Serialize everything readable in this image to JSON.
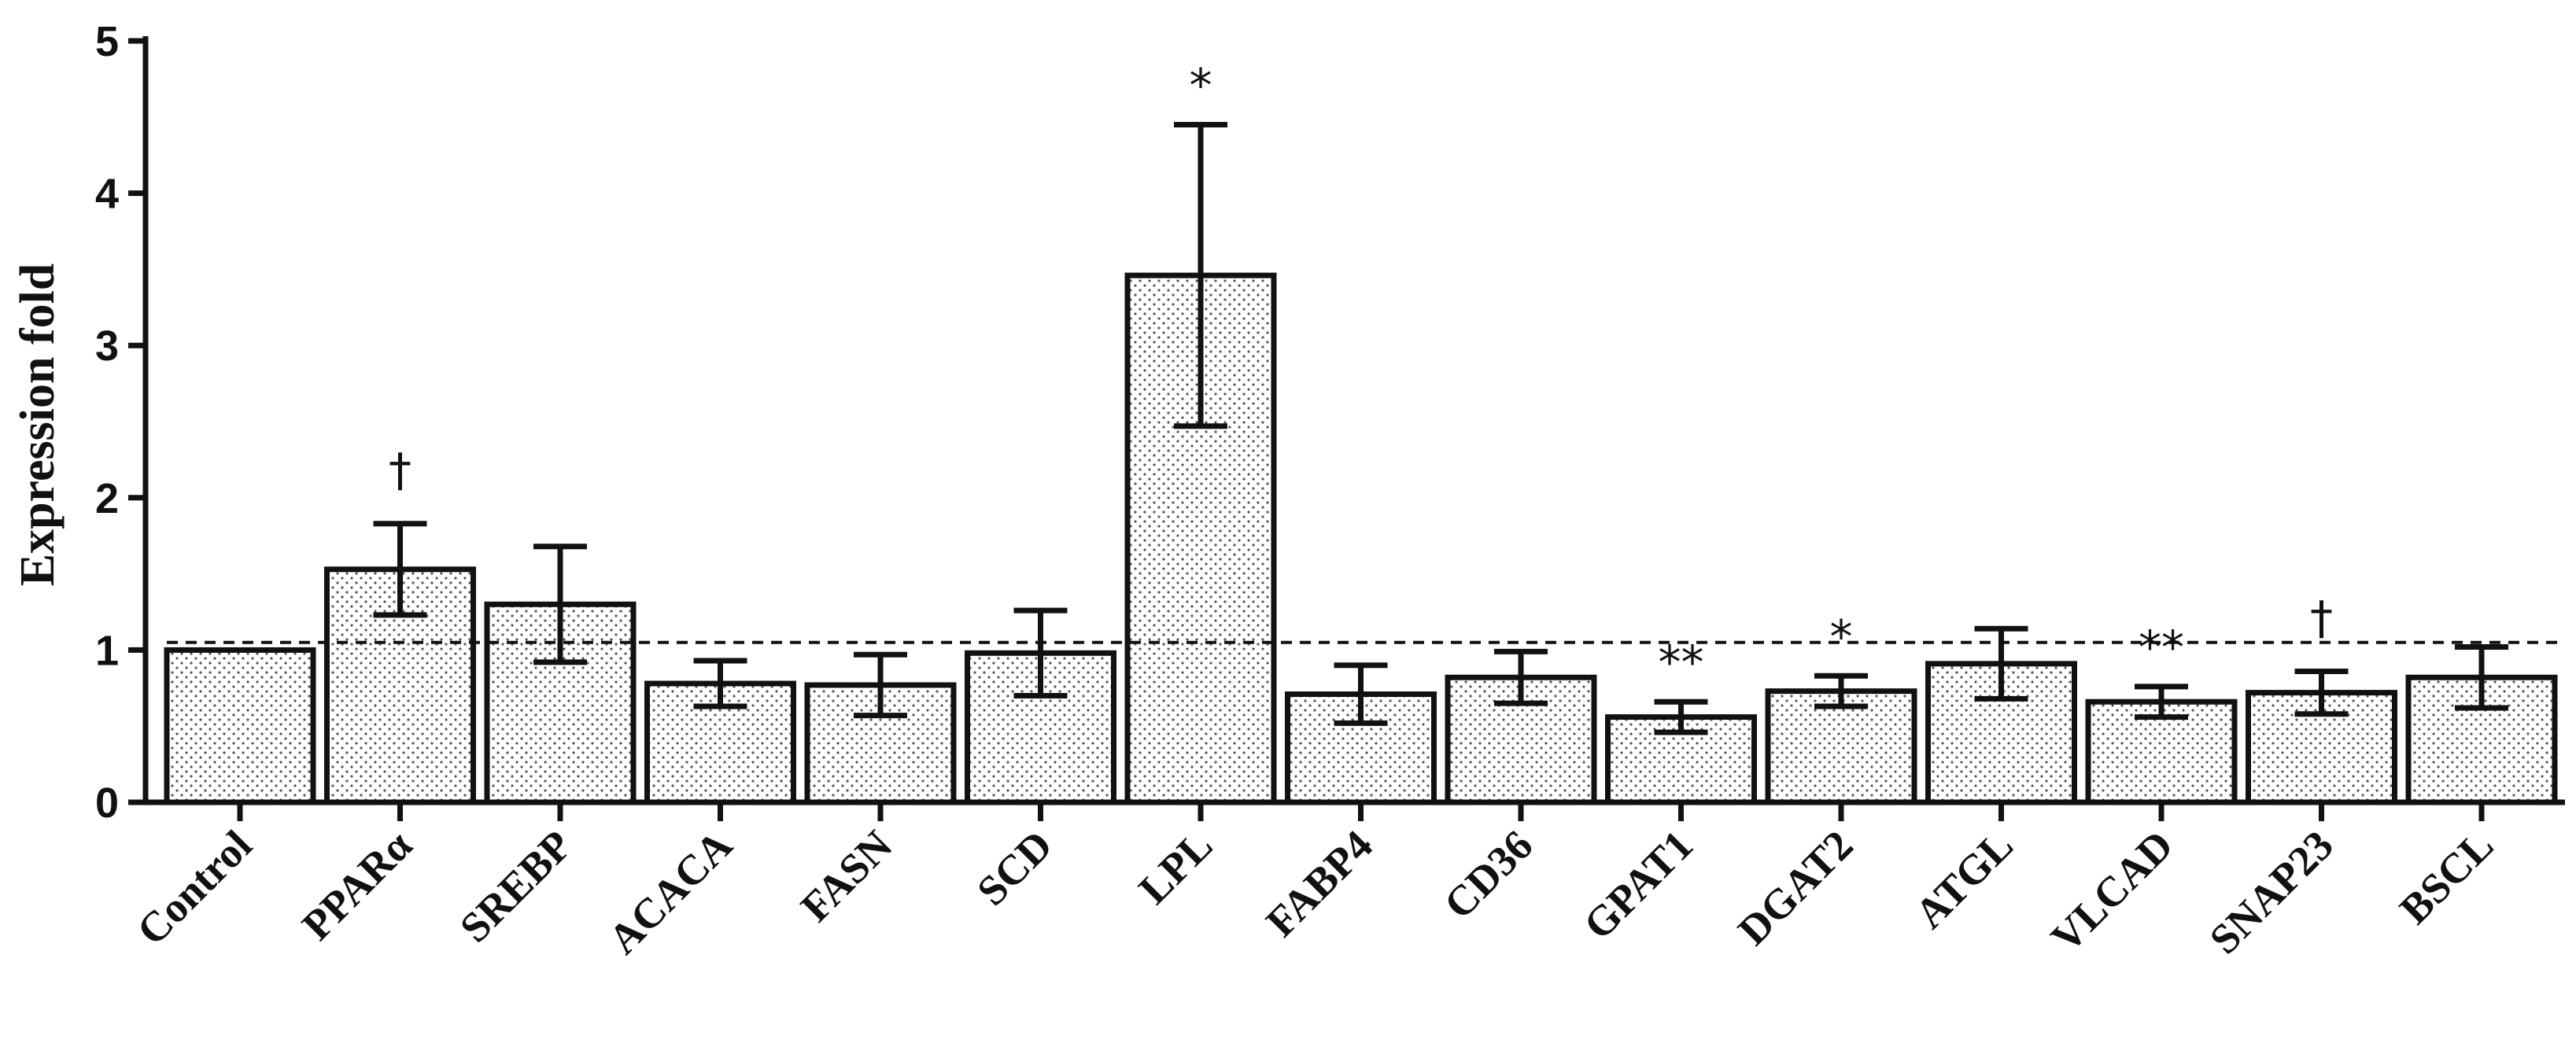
{
  "chart_data": {
    "type": "bar",
    "title": "",
    "xlabel": "",
    "ylabel": "Expression fold",
    "ylim": [
      0,
      5
    ],
    "yticks": [
      "0",
      "1",
      "2",
      "3",
      "4",
      "5"
    ],
    "reference_line": 1.05,
    "categories": [
      "Control",
      "PPARα",
      "SREBP",
      "ACACA",
      "FASN",
      "SCD",
      "LPL",
      "FABP4",
      "CD36",
      "GPAT1",
      "DGAT2",
      "ATGL",
      "VLCAD",
      "SNAP23",
      "BSCL"
    ],
    "values": [
      1.0,
      1.53,
      1.3,
      0.78,
      0.77,
      0.98,
      3.46,
      0.71,
      0.82,
      0.56,
      0.73,
      0.91,
      0.66,
      0.72,
      0.82
    ],
    "errors": [
      0.0,
      0.3,
      0.38,
      0.15,
      0.2,
      0.28,
      0.99,
      0.19,
      0.17,
      0.1,
      0.1,
      0.23,
      0.1,
      0.14,
      0.2
    ],
    "annotations": [
      "",
      "†",
      "",
      "",
      "",
      "",
      "*",
      "",
      "",
      "**",
      "*",
      "",
      "**",
      "†",
      ""
    ],
    "grid": false,
    "legend": "none"
  }
}
